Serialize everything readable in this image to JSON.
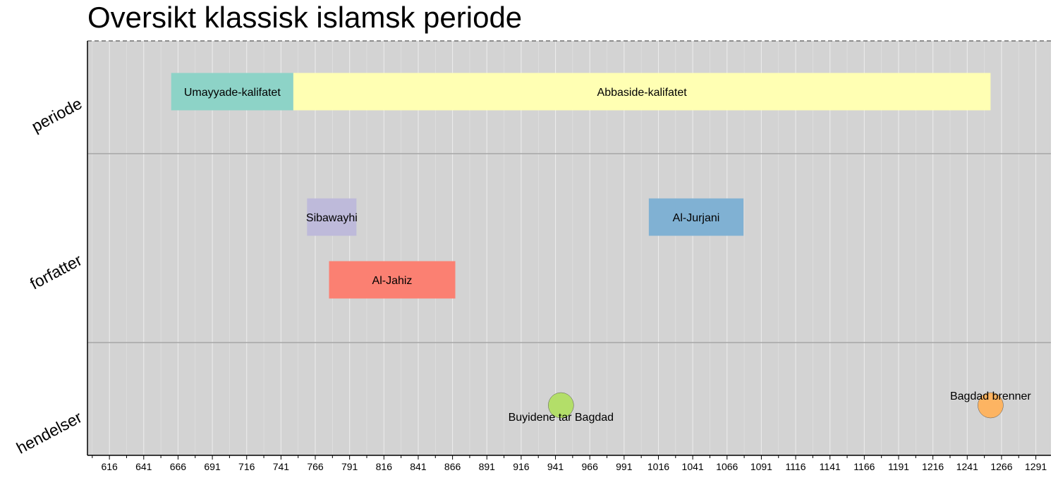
{
  "chart_data": {
    "type": "timeline",
    "title": "Oversikt klassisk islamsk periode",
    "x_ticks": [
      616,
      641,
      666,
      691,
      716,
      741,
      766,
      791,
      816,
      841,
      866,
      891,
      916,
      941,
      966,
      991,
      1016,
      1041,
      1066,
      1091,
      1116,
      1141,
      1166,
      1191,
      1216,
      1241,
      1266,
      1291
    ],
    "xlim": [
      600,
      1302
    ],
    "lanes": [
      "periode",
      "forfatter",
      "hendelser"
    ],
    "periods": [
      {
        "label": "Umayyade-kalifatet",
        "start": 661,
        "end": 750,
        "lane": "periode",
        "row": 0,
        "color": "#8dd3c7"
      },
      {
        "label": "Abbaside-kalifatet",
        "start": 750,
        "end": 1258,
        "lane": "periode",
        "row": 0,
        "color": "#ffffb3"
      },
      {
        "label": "Sibawayhi",
        "start": 760,
        "end": 796,
        "lane": "forfatter",
        "row": 0,
        "color": "#bebada"
      },
      {
        "label": "Al-Jurjani",
        "start": 1009,
        "end": 1078,
        "lane": "forfatter",
        "row": 0,
        "color": "#80b1d3"
      },
      {
        "label": "Al-Jahiz",
        "start": 776,
        "end": 868,
        "lane": "forfatter",
        "row": 1,
        "color": "#fb8072"
      }
    ],
    "events": [
      {
        "label": "Buyidene tar Bagdad",
        "year": 945,
        "color": "#b3de69",
        "label_pos": "below"
      },
      {
        "label": "Bagdad brenner",
        "year": 1258,
        "color": "#fdb462",
        "label_pos": "above"
      }
    ],
    "grid": true,
    "legend": "none"
  }
}
